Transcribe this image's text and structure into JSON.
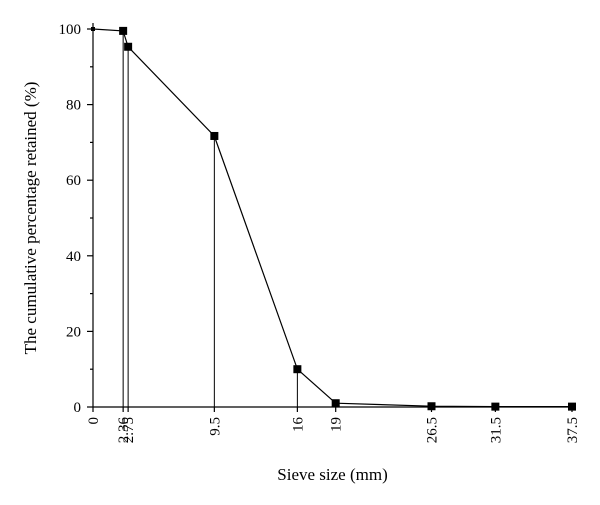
{
  "chart_data": {
    "type": "line",
    "title": "",
    "xlabel": "Sieve size (mm)",
    "ylabel": "The cumulative percentage retained (%)",
    "xlim": [
      0,
      37.5
    ],
    "ylim": [
      0,
      100
    ],
    "x_ticks": [
      0,
      2.36,
      2.75,
      9.5,
      16,
      19,
      26.5,
      31.5,
      37.5
    ],
    "x_tick_labels": [
      "0",
      "2.36",
      "2.75",
      "9.5",
      "16",
      "19",
      "26.5",
      "31.5",
      "37.5"
    ],
    "y_ticks": [
      0,
      20,
      40,
      60,
      80,
      100
    ],
    "y_tick_labels": [
      "0",
      "20",
      "40",
      "60",
      "80",
      "100"
    ],
    "grid": false,
    "legend": false,
    "drop_lines_at": [
      2.36,
      2.75,
      9.5,
      16
    ],
    "series": [
      {
        "x": [
          0,
          2.36,
          2.75,
          9.5,
          16,
          19,
          26.5,
          31.5,
          37.5
        ],
        "y": [
          100,
          99.5,
          95.3,
          71.7,
          10,
          1,
          0.2,
          0.1,
          0.1
        ]
      }
    ]
  }
}
